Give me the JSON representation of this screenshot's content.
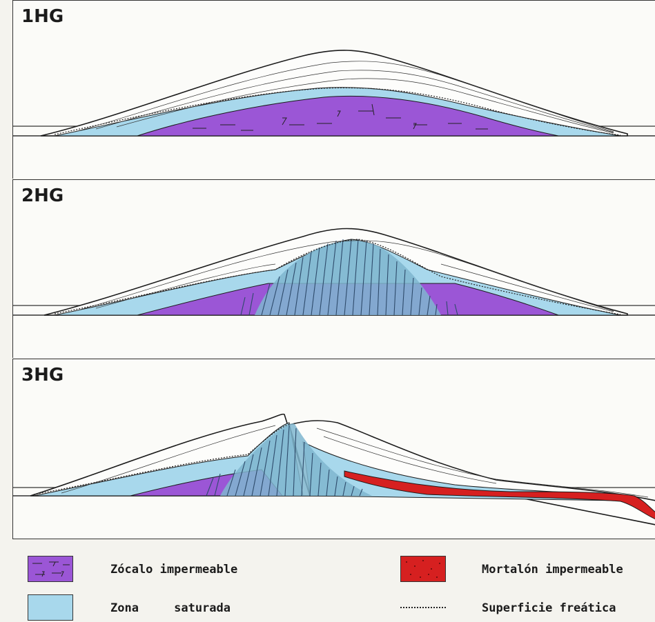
{
  "panels": [
    {
      "label": "1HG"
    },
    {
      "label": "2HG"
    },
    {
      "label": "3HG"
    }
  ],
  "legend": {
    "zocalo": "Zócalo impermeable",
    "zona": "Zona     saturada",
    "mortalon": "Mortalón impermeable",
    "superficie": "Superficie freática"
  },
  "colors": {
    "zocalo": "#9b56d6",
    "zona": "#a8d8ec",
    "mortalon": "#d62020",
    "fractures": "#2d4a6a",
    "outline": "#1b1b1b"
  }
}
